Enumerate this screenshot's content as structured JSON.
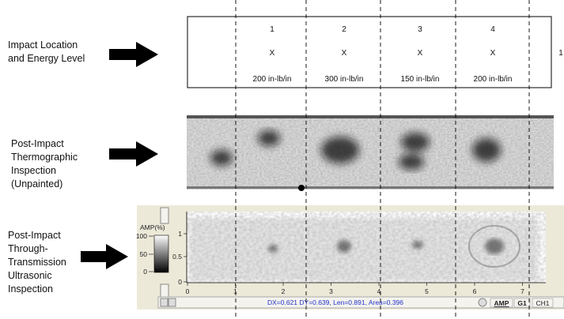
{
  "labels": {
    "impact": [
      "Impact Location",
      "and Energy Level"
    ],
    "thermo": [
      "Post-Impact",
      "Thermographic",
      "Inspection",
      "(Unpainted)"
    ],
    "ultrasonic": [
      "Post-Impact",
      "Through-",
      "Transmission",
      "Ultrasonic",
      "Inspection"
    ]
  },
  "impacts": [
    {
      "number": "1",
      "mark": "X",
      "energy": "200 in-lb/in"
    },
    {
      "number": "2",
      "mark": "X",
      "energy": "300 in-lb/in"
    },
    {
      "number": "3",
      "mark": "X",
      "energy": "150 in-lb/in"
    },
    {
      "number": "4",
      "mark": "X",
      "energy": "200 in-lb/in"
    }
  ],
  "cutoff_number": "1",
  "ultrasonic_panel": {
    "colorbar_title": "AMP(%)",
    "colorbar_ticks": [
      "100",
      "50",
      "0"
    ],
    "y_ticks": [
      "1",
      "0.5",
      "0"
    ],
    "x_ticks": [
      "0",
      "1",
      "2",
      "3",
      "4",
      "5",
      "6",
      "7"
    ],
    "status": "DX=0.621  DY=0.639, Len=0.891, Area=0.396",
    "buttons": [
      "AMP",
      "G1",
      "CH1"
    ]
  }
}
